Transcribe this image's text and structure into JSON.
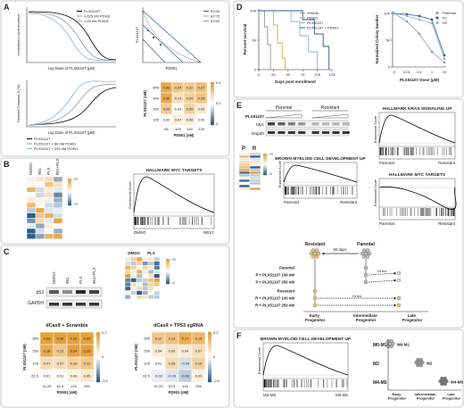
{
  "A": {
    "label": "A",
    "dose": {
      "y_label": "Normalized Luminescence",
      "x_label": "Log Dose of PLX51107 (μM)",
      "legend": [
        "PLX51107",
        "0.625 nM PD901",
        "1.25 nM PD901"
      ]
    },
    "iso": {
      "y_label": "PLX51107",
      "x_label": "PD901",
      "legend": [
        "EC90",
        "EC75",
        "EC50"
      ]
    },
    "caspase": {
      "y_label": "Cleaved Caspase-3 (%)",
      "x_label": "Log Dose of PLX51107 (μM)",
      "legend": [
        "PLX51107",
        "PLX51107 + 86 nM PD901",
        "PLX51107 + 225 nM PD901"
      ]
    },
    "heatmap": {
      "y_label": "PLX51107 (nM)",
      "x_label": "PD901 (nM)",
      "rows": [
        "800",
        "400",
        "200",
        "100"
      ],
      "columns": [
        "56",
        "100",
        "150",
        "225"
      ],
      "cells": [
        [
          "0.36",
          "0.24",
          "0.22",
          "0.27"
        ],
        [
          "0.36",
          "0.13",
          "0.20",
          "0.25"
        ],
        [
          "0.23",
          "0.03",
          "0.20",
          "0.09"
        ],
        [
          "0.02",
          "0.07",
          "0.08",
          "0.00"
        ]
      ],
      "scale": [
        "0.4",
        "0.2",
        "0"
      ]
    }
  },
  "B": {
    "label": "B",
    "heatmap": {
      "columns": [
        "DMSO",
        "901",
        "PLX",
        "901+PLX"
      ],
      "scale": [
        "+3",
        "−3"
      ]
    },
    "gsea": {
      "title": "HALLMARK MYC TARGETS",
      "y_label": "Enrichment Score",
      "left": "DMSO",
      "right": "REST"
    }
  },
  "C": {
    "label": "C",
    "blot": {
      "columns": [
        "DMSO",
        "901",
        "PLX",
        "901+PLX"
      ],
      "rows": [
        "p53",
        "GAPDH"
      ]
    },
    "heatmap": {
      "columns": [
        "DMSO",
        "PLX"
      ],
      "scale": [
        "+3",
        "-3"
      ]
    },
    "scramble": {
      "title": "dCas9 + Scramble",
      "y_label": "PLX51107 (nM)",
      "x_label": "PD901 (nM)",
      "rows": [
        "500",
        "250",
        "125",
        "62.5"
      ],
      "columns": [
        "31.25",
        "62.5",
        "125",
        "250"
      ],
      "cells": [
        [
          "0.23",
          "0.38",
          "0.26",
          "0.20"
        ],
        [
          "0.18",
          "0.12",
          "0.24",
          "0.26"
        ],
        [
          "0.07",
          "0.07",
          "0.10",
          "0.12"
        ],
        [
          "0.01",
          "0.01",
          "0.03",
          "0.05"
        ]
      ]
    },
    "tp53": {
      "title": "dCas9 + TP53 sgRNA",
      "y_label": "PLX51107 (nM)",
      "x_label": "PD901 (nM)",
      "rows": [
        "500",
        "250",
        "125",
        "62.5"
      ],
      "columns": [
        "31.25",
        "62.5",
        "125",
        "250"
      ],
      "cells": [
        [
          "0.12",
          "0.13",
          "0.17",
          "0.15"
        ],
        [
          "0.04",
          "0.06",
          "0.04",
          "0.07"
        ],
        [
          "0.01",
          "0.08",
          "-0.04",
          "0.10"
        ],
        [
          "-0.02",
          "-0.03",
          "-0.06",
          "0.03"
        ]
      ]
    },
    "scale": [
      "0.2",
      "0",
      "-0.2"
    ]
  },
  "D": {
    "label": "D",
    "survival": {
      "y_label": "Percent survival",
      "x_label": "Days post enrollment",
      "xticks": [
        "0",
        "25",
        "50",
        "75",
        "100",
        "125"
      ],
      "yticks": [
        "0",
        "50",
        "100"
      ],
      "legend": [
        "Vehicle",
        "PD901",
        "PLX51107",
        "PLX51107 + PD901"
      ]
    },
    "colony": {
      "y_label": "Normalized Colony Number",
      "x_label": "PLX51107 Dose (μM)",
      "xticks": [
        "0",
        "0.01",
        "0.1",
        "1",
        "10"
      ],
      "yticks": [
        "0",
        "50",
        "100"
      ],
      "legend": [
        "Parental",
        "R1",
        "R2"
      ]
    }
  },
  "E": {
    "label": "E",
    "blot": {
      "groups": [
        "Parental",
        "Resistant"
      ],
      "treatment": "PLX51107",
      "rows": [
        "Myc",
        "Gapdh"
      ]
    },
    "kras": {
      "title": "HALLMARK KRAS SIGNALING UP",
      "y_label": "Enrichment Score",
      "left": "Parental",
      "right": "Resistant"
    },
    "heatmap": {
      "columns": [
        "P",
        "R"
      ],
      "scale": [
        "+3",
        "-3"
      ]
    },
    "brown": {
      "title": "BROWN MYELOID CELL DEVELOPMENT UP",
      "y_label": "Enrichment Score",
      "left": "Parental",
      "right": "Resistant"
    },
    "myc": {
      "title": "HALLMARK MYC TARGETS",
      "y_label": "Enrichment Score",
      "left": "Parental",
      "right": "Resistant"
    },
    "diagram": {
      "resistant": "Resistant",
      "parental": "Parental",
      "duration": "90 days",
      "short": [
        "24 hrs",
        "24 hrs"
      ],
      "conditions": [
        "Parental",
        "P + PLX51107 100 nM",
        "P + PLX51107 250 nM",
        "Resistant",
        "R + PLX51107 100 nM",
        "R + PLX51107 250 nM"
      ],
      "stages": [
        "Early Progenitor",
        "Intermediate Progenitor",
        "Late Progenitor"
      ]
    }
  },
  "F": {
    "label": "F",
    "gsea": {
      "title": "BROWN MYELOID CELL DEVELOPMENT UP",
      "y_label": "Enrichment Score",
      "left": "M2-M5",
      "right": "M0-M1"
    },
    "diagram": {
      "groups": [
        "M0-M1",
        "M2",
        "M4-M5"
      ],
      "clusters": [
        "M0-M1",
        "M2",
        "M4-M5"
      ],
      "stages": [
        "Early Progenitor",
        "Intermediate Progenitor",
        "Late Progenitor"
      ]
    }
  }
}
